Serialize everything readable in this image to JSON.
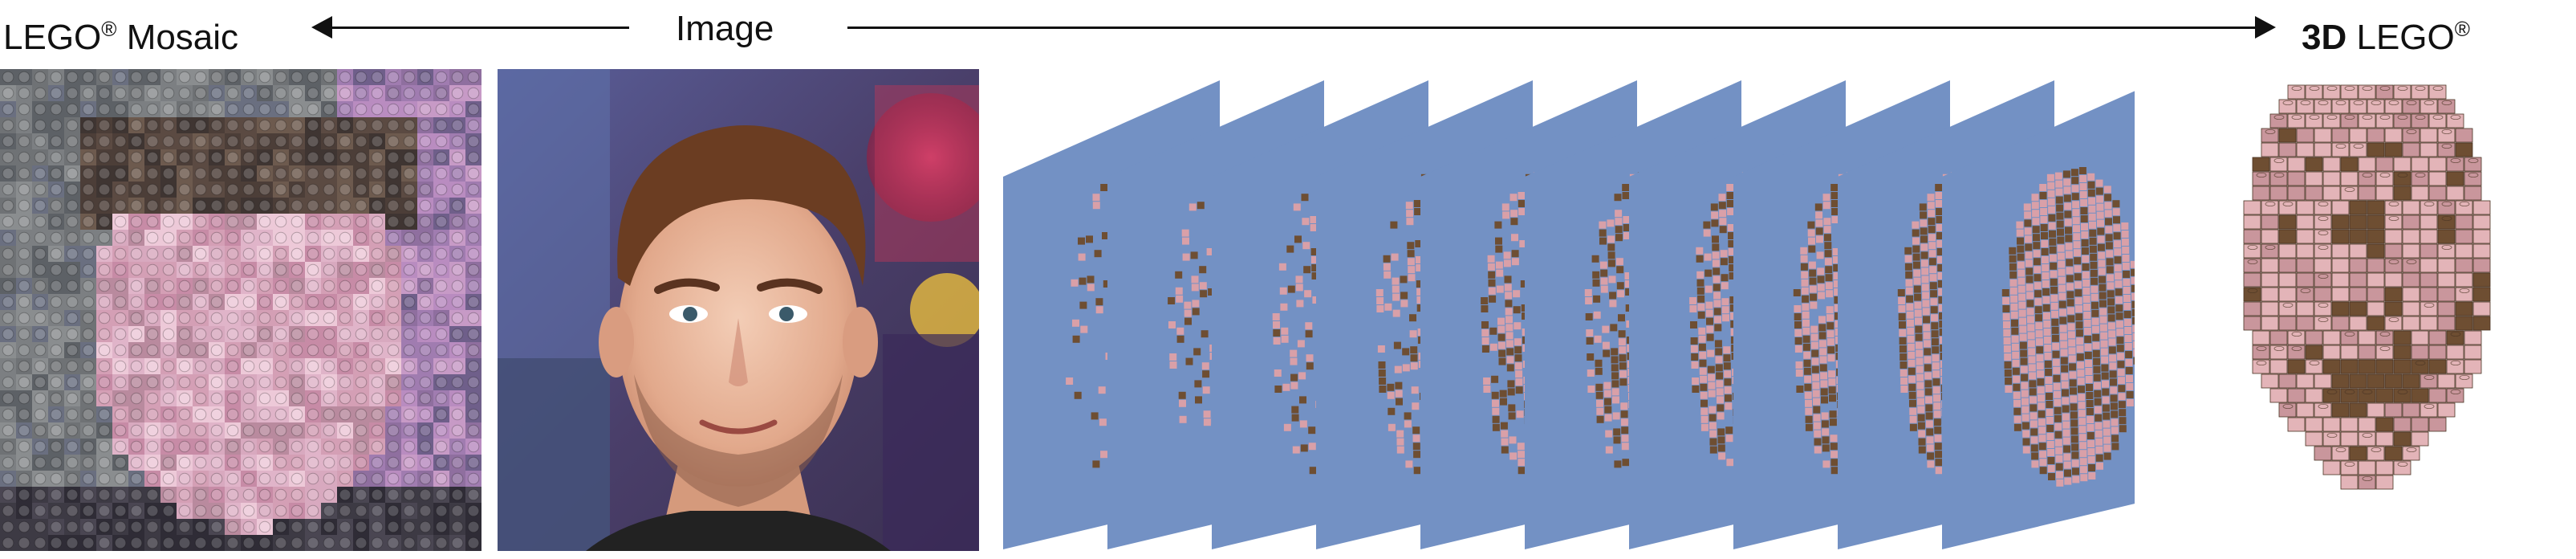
{
  "header": {
    "mosaic_label": "LEGO",
    "mosaic_label_suffix": "Mosaic",
    "image_label": "Image",
    "lego3d_label_bold": "3D",
    "lego3d_label": "LEGO",
    "registered_mark": "®"
  },
  "panels": {
    "mosaic": {
      "grid_cols": 30,
      "grid_rows": 30
    },
    "slices": {
      "count": 10
    },
    "lego3d": {
      "stud_cols": 14
    }
  },
  "colors": {
    "slice_blue": "#7391c4",
    "skin_pink": "#d9a0a8",
    "brick_brown": "#6e4e32",
    "photo_bg": "#5a4f7a",
    "skin_tone": "#e8b9a0",
    "hair": "#6b3d22"
  }
}
